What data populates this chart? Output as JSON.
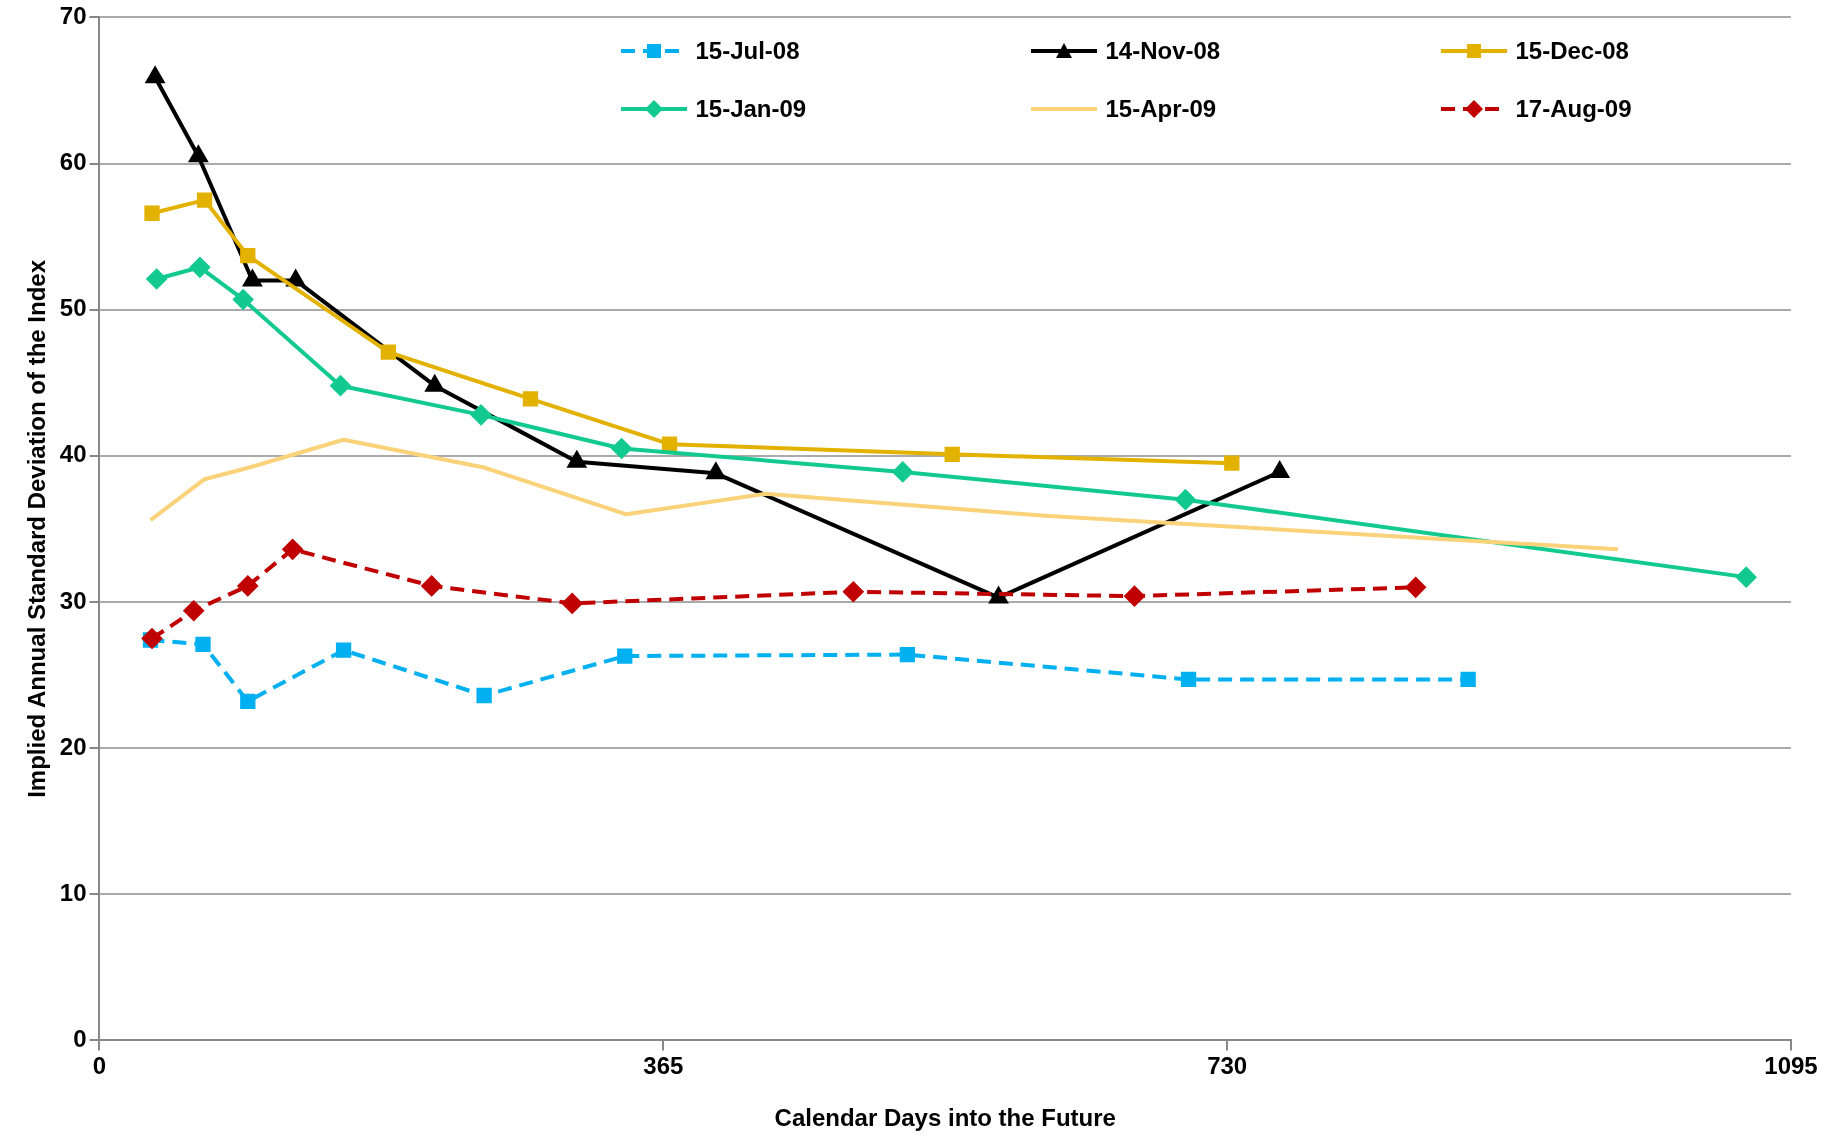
{
  "chart_data": {
    "type": "line",
    "xlabel": "Calendar Days into the Future",
    "ylabel": "Implied Annual Standard Deviation of the Index",
    "xlim": [
      0,
      1095
    ],
    "xticks": [
      0,
      365,
      730,
      1095
    ],
    "ylim": [
      0,
      70
    ],
    "yticks": [
      0,
      10,
      20,
      30,
      40,
      50,
      60,
      70
    ],
    "grid": "y",
    "legend": "top",
    "series": [
      {
        "name": "15-Jul-08",
        "color": "#00b0f0",
        "marker": "square",
        "line_style": "dashed",
        "x": [
          33,
          67,
          96,
          158,
          249,
          340,
          523,
          705,
          886
        ],
        "values": [
          27.4,
          27.1,
          23.2,
          26.7,
          23.6,
          26.3,
          26.4,
          24.7,
          24.7
        ]
      },
      {
        "name": "14-Nov-08",
        "color": "#000000",
        "marker": "triangle",
        "line_style": "solid",
        "x": [
          36,
          64,
          99,
          127,
          217,
          309,
          399,
          582,
          764
        ],
        "values": [
          65.9,
          60.5,
          52.0,
          52.0,
          44.8,
          39.6,
          38.8,
          30.3,
          38.9
        ]
      },
      {
        "name": "15-Dec-08",
        "color": "#e3b200",
        "marker": "square",
        "line_style": "solid",
        "x": [
          34,
          68,
          96,
          187,
          279,
          369,
          552,
          733
        ],
        "values": [
          56.6,
          57.5,
          53.7,
          47.1,
          43.9,
          40.8,
          40.1,
          39.5
        ]
      },
      {
        "name": "15-Jan-09",
        "color": "#12c98e",
        "marker": "diamond",
        "line_style": "solid",
        "x": [
          37,
          65,
          93,
          156,
          247,
          338,
          520,
          703,
          1066
        ],
        "values": [
          52.1,
          52.9,
          50.7,
          44.8,
          42.8,
          40.5,
          38.9,
          37.0,
          31.7
        ]
      },
      {
        "name": "15-Apr-09",
        "color": "#fad27a",
        "marker": "none",
        "line_style": "solid",
        "x": [
          33,
          68,
          97,
          158,
          249,
          341,
          431,
          612,
          983
        ],
        "values": [
          35.6,
          38.4,
          39.2,
          41.1,
          39.2,
          36.0,
          37.4,
          35.9,
          33.6
        ]
      },
      {
        "name": "17-Aug-09",
        "color": "#c00000",
        "marker": "diamond",
        "line_style": "dashed",
        "x": [
          34,
          61,
          96,
          125,
          215,
          306,
          488,
          670,
          852
        ],
        "values": [
          27.5,
          29.4,
          31.1,
          33.6,
          31.1,
          29.9,
          30.7,
          30.4,
          31.0
        ]
      }
    ]
  }
}
